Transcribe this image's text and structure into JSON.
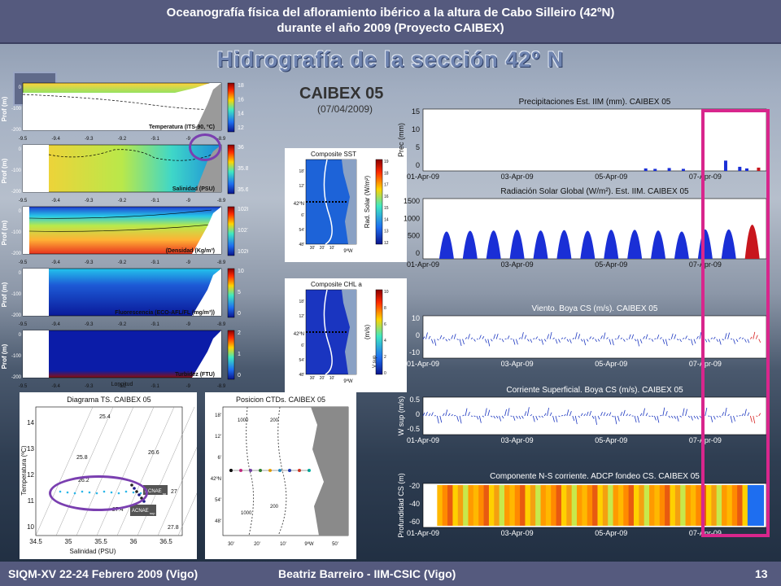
{
  "header": {
    "line1": "Oceanografía física del afloramiento ibérico a la altura de Cabo Silleiro (42ºN)",
    "line2": "durante el año 2009 (Proyecto CAIBEX)"
  },
  "section_title": "Hidrografía de la sección 42º N",
  "t_button": "T ↑",
  "colors": {
    "header": "#555a7e",
    "title": "#6f84b0",
    "highlight": "#d8268c",
    "circle": "#7a3fb0",
    "bars": "#1a2fd6",
    "bars_red": "#c8161d"
  },
  "panels": {
    "temperature": {
      "label": "Temperatura (ITS-90, ºC)",
      "ylabel": "Prof (m)",
      "colorbar": [
        "18",
        "16",
        "14",
        "12"
      ]
    },
    "salinity": {
      "label": "Salinidad (PSU)",
      "ylabel": "Prof (m)",
      "colorbar": [
        "36",
        "35.8",
        "35.6"
      ]
    },
    "density": {
      "label": "(Densidad (Kg/m³)",
      "ylabel": "Prof (m)",
      "colorbar": [
        "1028",
        "1027",
        "1026"
      ]
    },
    "fluorescence": {
      "label": "Fluorescencia (ECO-AFL/FL (mg/m³))",
      "ylabel": "Prof (m)",
      "colorbar": [
        "10",
        "5",
        "0"
      ]
    },
    "turbidity": {
      "label": "Turbidez (FTU)",
      "ylabel": "Prof (m)",
      "colorbar": [
        "2",
        "1",
        "0"
      ]
    },
    "x_ticks": [
      "-9.5",
      "-9.4",
      "-9.3",
      "-9.2",
      "-9.1",
      "-9",
      "-8.9"
    ],
    "y_ticks": [
      "0",
      "-100",
      "-200"
    ],
    "xlabel": "Longitud"
  },
  "caibex": {
    "title": "CAIBEX 05",
    "date": "(07/04/2009)"
  },
  "sst_map": {
    "title": "Composite  SST",
    "label": "Rad. Solar (W/m²)",
    "colorbar": [
      "19",
      "18",
      "17",
      "16",
      "15",
      "14",
      "13",
      "12"
    ],
    "lat_label": "42ºN",
    "lon_label": "9ºW",
    "yticks": [
      "18'",
      "12'",
      "6'",
      "54'",
      "48'"
    ],
    "xticks": [
      "30'",
      "20'",
      "10'"
    ]
  },
  "chl_map": {
    "title": "Composite  CHL a",
    "label": "(m/s)",
    "label2": "V sup",
    "colorbar": [
      "10",
      "8",
      "6",
      "4",
      "2",
      "0"
    ],
    "lat_label": "42ºN",
    "lon_label": "9ºW",
    "yticks": [
      "18'",
      "12'",
      "6'",
      "54'",
      "48'"
    ],
    "xticks": [
      "30'",
      "20'",
      "10'"
    ]
  },
  "ts_diagram": {
    "title": "Diagrama TS. CAIBEX 05",
    "ylabel": "Temperatura (ºC)",
    "xlabel": "Salinidad (PSU)",
    "yticks": [
      "14",
      "13",
      "12",
      "11",
      "10"
    ],
    "xticks": [
      "34.5",
      "35",
      "35.5",
      "36",
      "36.5"
    ],
    "isopycnals": [
      "25.4",
      "25.8",
      "26.6",
      "26.2",
      "27",
      "27.4",
      "27.8"
    ],
    "label1": "ACNAE",
    "sub1": "sp",
    "label2": "ACNAE",
    "sub2": "sup"
  },
  "ctd_positions": {
    "title": "Posicion CTDs. CAIBEX 05",
    "yticks": [
      "18'",
      "12'",
      "6'",
      "42ºN",
      "54'",
      "48'"
    ],
    "xticks": [
      "30'",
      "20'",
      "10'",
      "9ºW",
      "50'"
    ],
    "contours": [
      "1000",
      "200",
      "1000",
      "200"
    ]
  },
  "chart_data": [
    {
      "type": "bar",
      "title": "Precipitaciones Est. IIM (mm).  CAIBEX 05",
      "ylabel": "Prec   (mm)",
      "yticks": [
        "15",
        "10",
        "5",
        "0"
      ],
      "ylim": [
        0,
        15
      ],
      "xticks": [
        "01-Apr-09",
        "03-Apr-09",
        "05-Apr-09",
        "07-Apr-09"
      ],
      "bars": [
        {
          "x": 4.7,
          "v": 0.6
        },
        {
          "x": 4.9,
          "v": 0.5
        },
        {
          "x": 5.2,
          "v": 0.7
        },
        {
          "x": 5.5,
          "v": 0.5
        },
        {
          "x": 6.4,
          "v": 2.5
        },
        {
          "x": 6.7,
          "v": 1.0
        },
        {
          "x": 6.85,
          "v": 0.6
        },
        {
          "x": 7.1,
          "v": 0.8
        }
      ]
    },
    {
      "type": "bar",
      "title": "Radiación Solar Global (W/m²). Est. IIM. CAIBEX 05",
      "ylabel": "",
      "yticks": [
        "1500",
        "1000",
        "500",
        "0"
      ],
      "ylim": [
        0,
        1500
      ],
      "xticks": [
        "01-Apr-09",
        "03-Apr-09",
        "05-Apr-09",
        "07-Apr-09"
      ],
      "days": [
        {
          "x": 0.5,
          "v": 800
        },
        {
          "x": 1.0,
          "v": 820
        },
        {
          "x": 1.5,
          "v": 830
        },
        {
          "x": 2.0,
          "v": 850
        },
        {
          "x": 2.5,
          "v": 830
        },
        {
          "x": 3.0,
          "v": 840
        },
        {
          "x": 3.5,
          "v": 820
        },
        {
          "x": 4.0,
          "v": 850
        },
        {
          "x": 4.5,
          "v": 850
        },
        {
          "x": 5.0,
          "v": 830
        },
        {
          "x": 5.5,
          "v": 800
        },
        {
          "x": 6.0,
          "v": 860
        },
        {
          "x": 6.5,
          "v": 860
        },
        {
          "x": 7.0,
          "v": 1000
        }
      ]
    },
    {
      "type": "line",
      "title": "Viento. Boya CS (m/s). CAIBEX 05",
      "ylabel": "",
      "yticks": [
        "10",
        "0",
        "-10"
      ],
      "ylim": [
        -15,
        15
      ],
      "xticks": [
        "01-Apr-09",
        "03-Apr-09",
        "05-Apr-09",
        "07-Apr-09"
      ]
    },
    {
      "type": "line",
      "title": "Corriente Superficial. Boya CS (m/s). CAIBEX 05",
      "ylabel": "W sup  (m/s)",
      "yticks": [
        "0.5",
        "0",
        "-0.5"
      ],
      "ylim": [
        -0.6,
        0.6
      ],
      "xticks": [
        "01-Apr-09",
        "03-Apr-09",
        "05-Apr-09",
        "07-Apr-09"
      ]
    },
    {
      "type": "heatmap",
      "title": "Componente N-S corriente. ADCP fondeo CS. CAIBEX 05",
      "ylabel": "Profundidad CS (m)",
      "yticks": [
        "-20",
        "-40",
        "-60"
      ],
      "xticks": [
        "01-Apr-09",
        "03-Apr-09",
        "05-Apr-09",
        "07-Apr-09"
      ]
    }
  ],
  "footer": {
    "left": "SIQM-XV 22-24 Febrero 2009 (Vigo)",
    "center": "Beatriz Barreiro  - IIM-CSIC (Vigo)",
    "page": "13"
  }
}
